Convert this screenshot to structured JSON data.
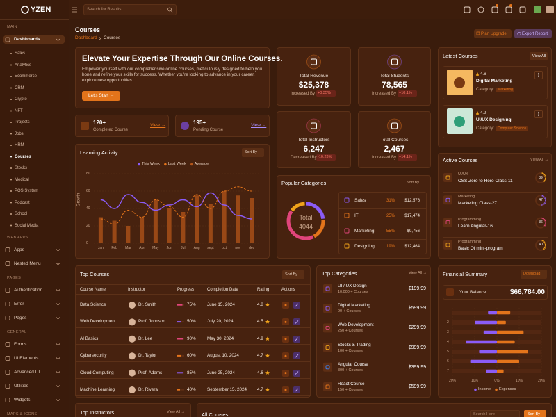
{
  "brand": "YZEN",
  "search_placeholder": "Search for Results...",
  "sidebar": {
    "active": "Courses",
    "sections": [
      {
        "title": "MAIN",
        "items": [
          "Dashboards"
        ],
        "sub": [
          "Sales",
          "Analytics",
          "Ecommerce",
          "CRM",
          "Crypto",
          "NFT",
          "Projects",
          "Jobs",
          "HRM",
          "Courses",
          "Stocks",
          "Medical",
          "POS System",
          "Podcast",
          "School",
          "Social Media"
        ]
      },
      {
        "title": "WEB APPS",
        "items": [
          "Apps",
          "Nested Menu"
        ]
      },
      {
        "title": "PAGES",
        "items": [
          "Authentication",
          "Error",
          "Pages"
        ]
      },
      {
        "title": "GENERAL",
        "items": [
          "Forms",
          "UI Elements",
          "Advanced UI",
          "Utilities",
          "Widgets"
        ]
      },
      {
        "title": "MAPS & ICONS",
        "items": []
      }
    ]
  },
  "page": {
    "title": "Courses",
    "breadcrumb": [
      "Dashboard",
      "Courses"
    ],
    "buttons": [
      "Plan Upgrade",
      "Export Report"
    ]
  },
  "hero": {
    "title": "Elevate Your Expertise Through Our Online Courses.",
    "text": "Empower yourself with our comprehensive online courses, meticulously designed to help you hone and refine your skills for success. Whether you're looking to advance in your career, explore new opportunities.",
    "button": "Let's Start →"
  },
  "stats": [
    {
      "value": "120+",
      "label": "Completed Course",
      "link": "View →"
    },
    {
      "value": "195+",
      "label": "Pending Course",
      "link": "View →"
    }
  ],
  "kpis": [
    {
      "label": "Total Revenue",
      "value": "$25,378",
      "trend": "Increased By",
      "change": "+0.35%"
    },
    {
      "label": "Total Students",
      "value": "78,565",
      "trend": "Increased By",
      "change": "+10.1%"
    },
    {
      "label": "Total Instructors",
      "value": "6,247",
      "trend": "Decreased By",
      "change": "-10.23%"
    },
    {
      "label": "Total Courses",
      "value": "2,467",
      "trend": "Increased By",
      "change": "+14.1%"
    }
  ],
  "learning_activity": {
    "type": "line",
    "title": "Learning Activity",
    "sort": "Sort By",
    "y_label": "Growth",
    "categories": [
      "Jan",
      "Feb",
      "Mar",
      "Apr",
      "May",
      "Jun",
      "Jul",
      "Aug",
      "sept",
      "oct",
      "nov",
      "dec"
    ],
    "series": [
      {
        "name": "This Week",
        "color": "#8b5cf6",
        "values": [
          50,
          40,
          56,
          47,
          38,
          44,
          50,
          42,
          58,
          44,
          32,
          28
        ]
      },
      {
        "name": "Last Week",
        "color": "#e3741b",
        "dashed": true,
        "values": [
          28,
          22,
          38,
          30,
          50,
          42,
          30,
          56,
          40,
          60,
          65,
          60
        ]
      },
      {
        "name": "Average",
        "color": "#b4561a",
        "type": "bar",
        "values": [
          30,
          26,
          20,
          30,
          50,
          40,
          36,
          55,
          45,
          60,
          55,
          52
        ]
      }
    ],
    "ylim": [
      0,
      80
    ],
    "yticks": [
      0,
      20,
      40,
      60,
      80
    ]
  },
  "popular_categories": {
    "type": "pie",
    "title": "Popular Categories",
    "sort": "Sort By",
    "center_label": "Total",
    "center_value": "4044",
    "rows": [
      {
        "name": "Sales",
        "value": 31,
        "value_label": "31%",
        "amount": "$12,576",
        "color": "#8b5cf6"
      },
      {
        "name": "IT",
        "value": 25,
        "value_label": "25%",
        "amount": "$17,474",
        "color": "#e3741b"
      },
      {
        "name": "Marketing",
        "value": 55,
        "value_label": "55%",
        "amount": "$9,756",
        "color": "#e0457b"
      },
      {
        "name": "Designing",
        "value": 19,
        "value_label": "19%",
        "amount": "$12,464",
        "color": "#f0a31a"
      }
    ]
  },
  "latest_courses": {
    "title": "Latest Courses",
    "view_all": "View All",
    "category_label": "Category:",
    "items": [
      {
        "rating": 4.6,
        "name": "Digital Marketing",
        "category": "Marketing"
      },
      {
        "rating": 4.2,
        "name": "UI/UX Designing",
        "category": "Computer Science"
      }
    ]
  },
  "active_courses": {
    "title": "Active Courses",
    "view_all": "View All →",
    "items": [
      {
        "category": "UI/UX",
        "name": "CSS Zero to Hero Class-11",
        "value": 39,
        "color": "#f0a31a"
      },
      {
        "category": "Marketing",
        "name": "Marketing Class-27",
        "value": 47,
        "color": "#8b5cf6"
      },
      {
        "category": "Programming",
        "name": "Learn Angular-16",
        "value": 36,
        "color": "#e0457b"
      },
      {
        "category": "Programming",
        "name": "Basic Of mini-program",
        "value": 40,
        "color": "#f0a31a"
      }
    ]
  },
  "top_courses": {
    "title": "Top Courses",
    "sort": "Sort By",
    "columns": [
      "Course Name",
      "Instructor",
      "Progress",
      "Completion Date",
      "Rating",
      "Actions"
    ],
    "rows": [
      {
        "course": "Data Science",
        "instructor": "Dr. Smith",
        "progress": 75,
        "progress_label": "75%",
        "completion": "June 15, 2024",
        "rating": 4.8,
        "color": "#e0457b"
      },
      {
        "course": "Web Development",
        "instructor": "Prof. Johnson",
        "progress": 50,
        "progress_label": "50%",
        "completion": "July 20, 2024",
        "rating": 4.5,
        "color": "#8b5cf6"
      },
      {
        "course": "AI Basics",
        "instructor": "Dr. Lee",
        "progress": 90,
        "progress_label": "90%",
        "completion": "May 30, 2024",
        "rating": 4.9,
        "color": "#e0457b"
      },
      {
        "course": "Cybersecurity",
        "instructor": "Dr. Taylor",
        "progress": 60,
        "progress_label": "60%",
        "completion": "August 10, 2024",
        "rating": 4.7,
        "color": "#e3741b"
      },
      {
        "course": "Cloud Computing",
        "instructor": "Prof. Adams",
        "progress": 85,
        "progress_label": "85%",
        "completion": "June 25, 2024",
        "rating": 4.6,
        "color": "#8b5cf6"
      },
      {
        "course": "Machine Learning",
        "instructor": "Dr. Rivera",
        "progress": 40,
        "progress_label": "40%",
        "completion": "September 15, 2024",
        "rating": 4.7,
        "color": "#e3741b"
      }
    ]
  },
  "top_categories": {
    "title": "Top Categories",
    "view_all": "View All →",
    "items": [
      {
        "name": "UI / UX Design",
        "count": "10,000 + Courses",
        "price": "$199.99",
        "color": "#8b5cf6"
      },
      {
        "name": "Digital Marketing",
        "count": "90 + Courses",
        "price": "$599.99",
        "color": "#8b5cf6"
      },
      {
        "name": "Web Development",
        "count": "250 + Courses",
        "price": "$299.99",
        "color": "#e0457b"
      },
      {
        "name": "Stocks & Trading",
        "count": "100 + Courses",
        "price": "$999.99",
        "color": "#f0a31a"
      },
      {
        "name": "Angular Course",
        "count": "300 + Courses",
        "price": "$399.99",
        "color": "#3b82f6"
      },
      {
        "name": "React Course",
        "count": "150 + Courses",
        "price": "$599.99",
        "color": "#e3741b"
      }
    ]
  },
  "financial": {
    "type": "bar",
    "orientation": "horizontal",
    "title": "Financial Summary",
    "download": "Download",
    "balance_label": "Your Balance",
    "balance": "$66,784.00",
    "categories": [
      "1",
      "2",
      "3",
      "4",
      "5",
      "6",
      "7"
    ],
    "series": [
      {
        "name": "Income",
        "color": "#8b5cf6",
        "values": [
          -4,
          -10,
          -6,
          -14,
          -8,
          -12,
          -5
        ]
      },
      {
        "name": "Expenses",
        "color": "#e3741b",
        "values": [
          6,
          4,
          12,
          8,
          14,
          10,
          3
        ]
      }
    ],
    "xlim": [
      -20,
      20
    ],
    "xticks": [
      {
        "value": -20,
        "label": "20%"
      },
      {
        "value": -10,
        "label": "10%"
      },
      {
        "value": 0,
        "label": "0%"
      },
      {
        "value": 10,
        "label": "10%"
      },
      {
        "value": 20,
        "label": "20%"
      }
    ]
  },
  "bottom": {
    "top_instructors": "Top Instructors",
    "view_all": "View All →",
    "all_courses": "All Courses",
    "search": "Search Here",
    "sort": "Sort By"
  }
}
